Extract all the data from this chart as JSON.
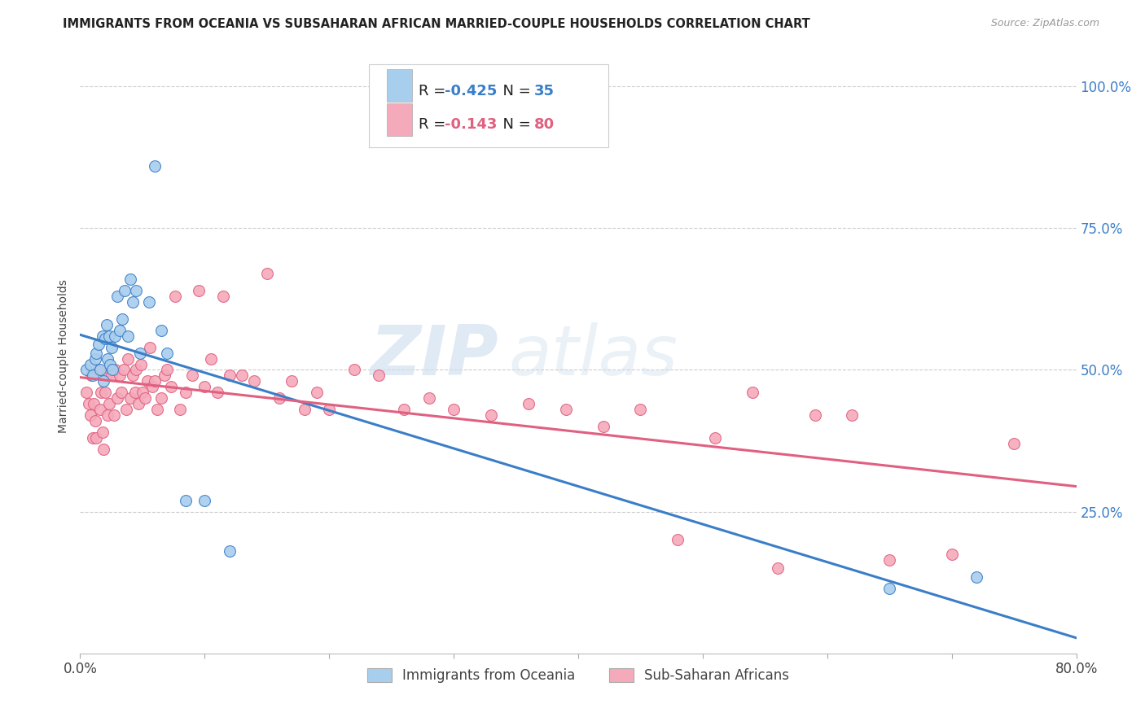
{
  "title": "IMMIGRANTS FROM OCEANIA VS SUBSAHARAN AFRICAN MARRIED-COUPLE HOUSEHOLDS CORRELATION CHART",
  "source": "Source: ZipAtlas.com",
  "ylabel": "Married-couple Households",
  "legend_label_oceania": "Immigrants from Oceania",
  "legend_label_africa": "Sub-Saharan Africans",
  "color_oceania": "#A8CEED",
  "color_africa": "#F5AABB",
  "line_color_oceania": "#3A7EC8",
  "line_color_africa": "#E06080",
  "watermark_zip": "ZIP",
  "watermark_atlas": "atlas",
  "watermark_color": "#D0E4F0",
  "background_color": "#FFFFFF",
  "oceania_x": [
    0.005,
    0.008,
    0.01,
    0.012,
    0.013,
    0.015,
    0.016,
    0.018,
    0.019,
    0.02,
    0.021,
    0.022,
    0.023,
    0.024,
    0.025,
    0.026,
    0.028,
    0.03,
    0.032,
    0.034,
    0.036,
    0.038,
    0.04,
    0.042,
    0.045,
    0.048,
    0.055,
    0.06,
    0.065,
    0.07,
    0.085,
    0.1,
    0.12,
    0.65,
    0.72
  ],
  "oceania_y": [
    0.5,
    0.51,
    0.49,
    0.52,
    0.53,
    0.545,
    0.5,
    0.56,
    0.48,
    0.555,
    0.58,
    0.52,
    0.56,
    0.51,
    0.54,
    0.5,
    0.56,
    0.63,
    0.57,
    0.59,
    0.64,
    0.56,
    0.66,
    0.62,
    0.64,
    0.53,
    0.62,
    0.86,
    0.57,
    0.53,
    0.27,
    0.27,
    0.18,
    0.115,
    0.135
  ],
  "africa_x": [
    0.005,
    0.007,
    0.008,
    0.009,
    0.01,
    0.011,
    0.012,
    0.013,
    0.015,
    0.016,
    0.017,
    0.018,
    0.019,
    0.02,
    0.021,
    0.022,
    0.023,
    0.025,
    0.027,
    0.028,
    0.03,
    0.032,
    0.033,
    0.035,
    0.037,
    0.038,
    0.04,
    0.042,
    0.044,
    0.045,
    0.047,
    0.049,
    0.05,
    0.052,
    0.054,
    0.056,
    0.058,
    0.06,
    0.062,
    0.065,
    0.068,
    0.07,
    0.073,
    0.076,
    0.08,
    0.085,
    0.09,
    0.095,
    0.1,
    0.105,
    0.11,
    0.115,
    0.12,
    0.13,
    0.14,
    0.15,
    0.16,
    0.17,
    0.18,
    0.19,
    0.2,
    0.22,
    0.24,
    0.26,
    0.28,
    0.3,
    0.33,
    0.36,
    0.39,
    0.42,
    0.45,
    0.48,
    0.51,
    0.54,
    0.56,
    0.59,
    0.62,
    0.65,
    0.7,
    0.75
  ],
  "africa_y": [
    0.46,
    0.44,
    0.42,
    0.49,
    0.38,
    0.44,
    0.41,
    0.38,
    0.5,
    0.43,
    0.46,
    0.39,
    0.36,
    0.46,
    0.49,
    0.42,
    0.44,
    0.49,
    0.42,
    0.5,
    0.45,
    0.49,
    0.46,
    0.5,
    0.43,
    0.52,
    0.45,
    0.49,
    0.46,
    0.5,
    0.44,
    0.51,
    0.46,
    0.45,
    0.48,
    0.54,
    0.47,
    0.48,
    0.43,
    0.45,
    0.49,
    0.5,
    0.47,
    0.63,
    0.43,
    0.46,
    0.49,
    0.64,
    0.47,
    0.52,
    0.46,
    0.63,
    0.49,
    0.49,
    0.48,
    0.67,
    0.45,
    0.48,
    0.43,
    0.46,
    0.43,
    0.5,
    0.49,
    0.43,
    0.45,
    0.43,
    0.42,
    0.44,
    0.43,
    0.4,
    0.43,
    0.2,
    0.38,
    0.46,
    0.15,
    0.42,
    0.42,
    0.165,
    0.175,
    0.37
  ],
  "xlim": [
    0.0,
    0.8
  ],
  "ylim": [
    0.0,
    1.05
  ],
  "ytick_values": [
    0.25,
    0.5,
    0.75,
    1.0
  ],
  "ytick_labels": [
    "25.0%",
    "50.0%",
    "75.0%",
    "100.0%"
  ]
}
